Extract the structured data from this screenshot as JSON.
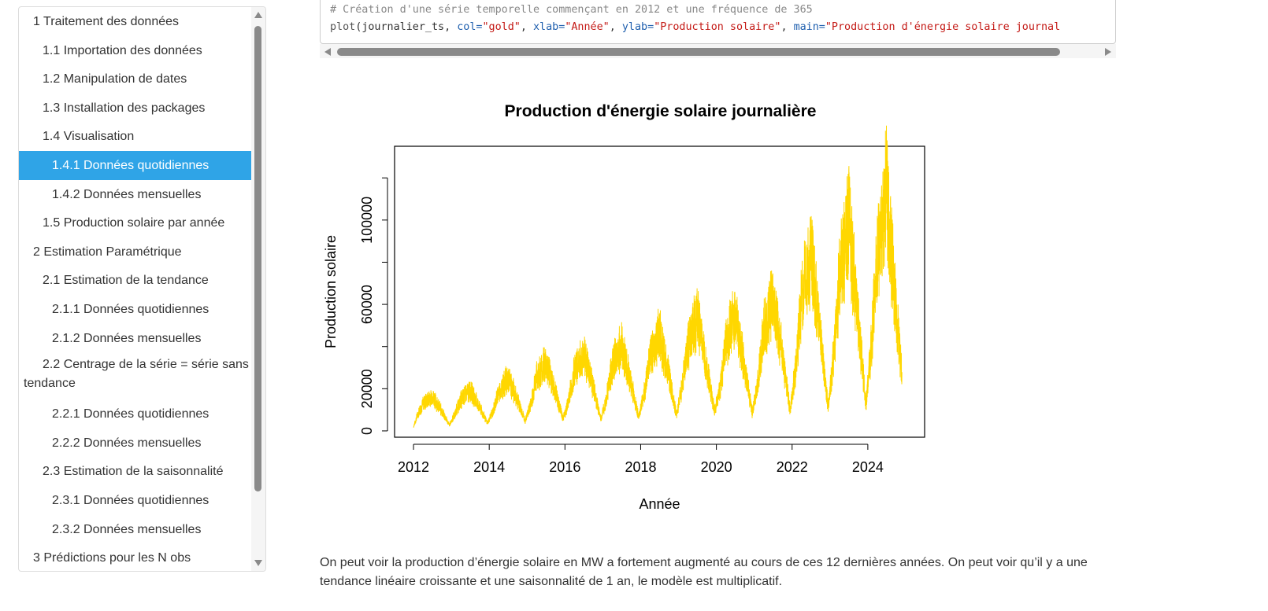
{
  "toc": {
    "items": [
      {
        "label": "1 Traitement des données",
        "level": 1
      },
      {
        "label": "1.1 Importation des données",
        "level": 2
      },
      {
        "label": "1.2 Manipulation de dates",
        "level": 2
      },
      {
        "label": "1.3 Installation des packages",
        "level": 2
      },
      {
        "label": "1.4 Visualisation",
        "level": 2
      },
      {
        "label": "1.4.1 Données quotidiennes",
        "level": 3,
        "active": true
      },
      {
        "label": "1.4.2 Données mensuelles",
        "level": 3
      },
      {
        "label": "1.5 Production solaire par année",
        "level": 2
      },
      {
        "label": "2 Estimation Paramétrique",
        "level": 1
      },
      {
        "label": "2.1 Estimation de la tendance",
        "level": 2
      },
      {
        "label": "2.1.1 Données quotidiennes",
        "level": 3
      },
      {
        "label": "2.1.2 Données mensuelles",
        "level": 3
      },
      {
        "label": "2.2 Centrage de la série = série sans tendance",
        "level": 2
      },
      {
        "label": "2.2.1 Données quotidiennes",
        "level": 3
      },
      {
        "label": "2.2.2 Données mensuelles",
        "level": 3
      },
      {
        "label": "2.3 Estimation de la saisonnalité",
        "level": 2
      },
      {
        "label": "2.3.1 Données quotidiennes",
        "level": 3
      },
      {
        "label": "2.3.2 Données mensuelles",
        "level": 3
      },
      {
        "label": "3 Prédictions pour les N obs",
        "level": 1
      }
    ]
  },
  "code": {
    "comment": "# Création d'une série temporelle commençant en 2012 et une fréquence de 365",
    "fn": "plot",
    "arg0": "journalier_ts",
    "a1_name": "col=",
    "a1_val": "\"gold\"",
    "a2_name": "xlab=",
    "a2_val": "\"Année\"",
    "a3_name": "ylab=",
    "a3_val": "\"Production solaire\"",
    "a4_name": "main=",
    "a4_val": "\"Production d'énergie solaire journal"
  },
  "chart_data": {
    "type": "line",
    "title": "Production d'énergie solaire journalière",
    "xlabel": "Année",
    "ylabel": "Production solaire",
    "color": "#FFD700",
    "xlim": [
      2011.5,
      2025.5
    ],
    "ylim": [
      -3000,
      135000
    ],
    "xticks": [
      "2012",
      "2014",
      "2016",
      "2018",
      "2020",
      "2022",
      "2024"
    ],
    "yticks": [
      "0",
      "20000",
      "60000",
      "100000"
    ],
    "yticks_unlabeled": [
      40000,
      80000,
      120000
    ],
    "series": [
      {
        "x": [
          2012.0,
          2012.1,
          2012.25,
          2012.5,
          2012.75,
          2012.95,
          2013.1,
          2013.25,
          2013.5,
          2013.75,
          2013.95,
          2014.1,
          2014.25,
          2014.5,
          2014.75,
          2014.95,
          2015.1,
          2015.25,
          2015.5,
          2015.75,
          2015.95,
          2016.1,
          2016.25,
          2016.5,
          2016.75,
          2016.95,
          2017.1,
          2017.25,
          2017.5,
          2017.75,
          2017.95,
          2018.1,
          2018.25,
          2018.5,
          2018.75,
          2018.95,
          2019.1,
          2019.25,
          2019.5,
          2019.75,
          2019.95,
          2020.1,
          2020.25,
          2020.5,
          2020.75,
          2020.95,
          2021.1,
          2021.25,
          2021.5,
          2021.75,
          2021.95,
          2022.1,
          2022.25,
          2022.5,
          2022.75,
          2022.95,
          2023.1,
          2023.25,
          2023.5,
          2023.75,
          2023.95,
          2024.1,
          2024.25,
          2024.5,
          2024.75,
          2024.9
        ],
        "y": [
          2000,
          8000,
          14000,
          18000,
          10000,
          3000,
          9000,
          16000,
          21000,
          12000,
          4000,
          10000,
          20000,
          27000,
          16000,
          5000,
          14000,
          28000,
          35000,
          20000,
          6000,
          16000,
          31000,
          40000,
          22000,
          6000,
          18000,
          34000,
          44000,
          24000,
          7000,
          20000,
          38000,
          50000,
          28000,
          8000,
          24000,
          44000,
          58000,
          32000,
          10000,
          22000,
          46000,
          60000,
          32000,
          9000,
          26000,
          52000,
          68000,
          38000,
          10000,
          34000,
          68000,
          90000,
          48000,
          12000,
          40000,
          78000,
          108000,
          56000,
          14000,
          46000,
          90000,
          125000,
          60000,
          30000
        ]
      }
    ]
  },
  "paragraph": "On peut voir la production d’énergie solaire en MW a fortement augmenté au cours de ces 12 dernières années. On peut voir qu’il y a une tendance linéaire croissante et une saisonnalité de 1 an, le modèle est multiplicatif."
}
